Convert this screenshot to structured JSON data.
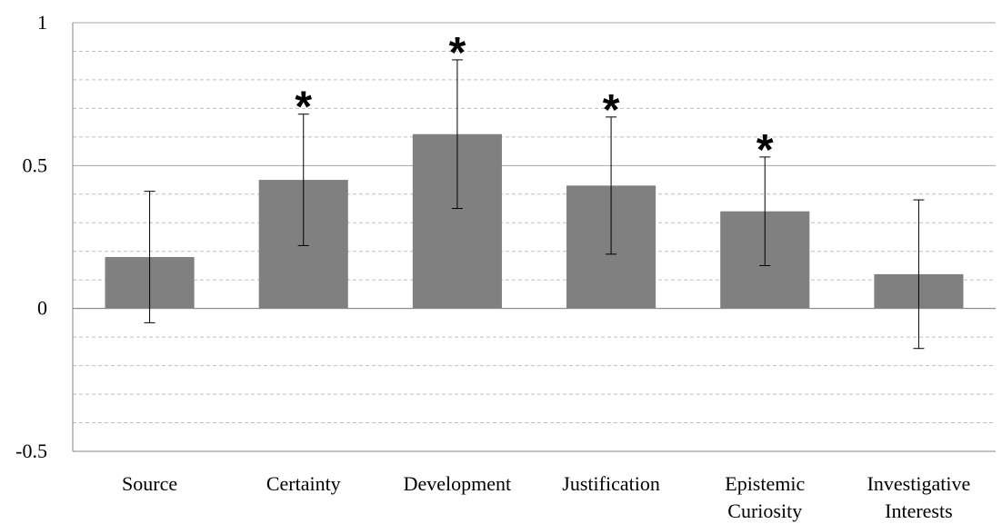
{
  "chart_data": {
    "type": "bar",
    "categories": [
      [
        "Source"
      ],
      [
        "Certainty"
      ],
      [
        "Development"
      ],
      [
        "Justification"
      ],
      [
        "Epistemic",
        "Curiosity"
      ],
      [
        "Investigative",
        "Interests"
      ]
    ],
    "values": [
      0.18,
      0.45,
      0.61,
      0.43,
      0.34,
      0.12
    ],
    "error_low": [
      -0.05,
      0.22,
      0.35,
      0.19,
      0.15,
      -0.14
    ],
    "error_high": [
      0.41,
      0.68,
      0.87,
      0.67,
      0.53,
      0.38
    ],
    "significance": [
      "",
      "*",
      "*",
      "*",
      "*",
      ""
    ],
    "ylim": [
      -0.5,
      1
    ],
    "yticks": [
      -0.5,
      0,
      0.5,
      1
    ],
    "ytick_labels": [
      "-0.5",
      "0",
      "0.5",
      "1"
    ],
    "minor_gridline_step": 0.1,
    "grid": true,
    "legend": "none",
    "colors": {
      "bar": "#808080",
      "major_grid": "#a6a6a6",
      "minor_grid": "#bfbfbf",
      "axis": "#868686",
      "error_bar": "#000000"
    }
  }
}
